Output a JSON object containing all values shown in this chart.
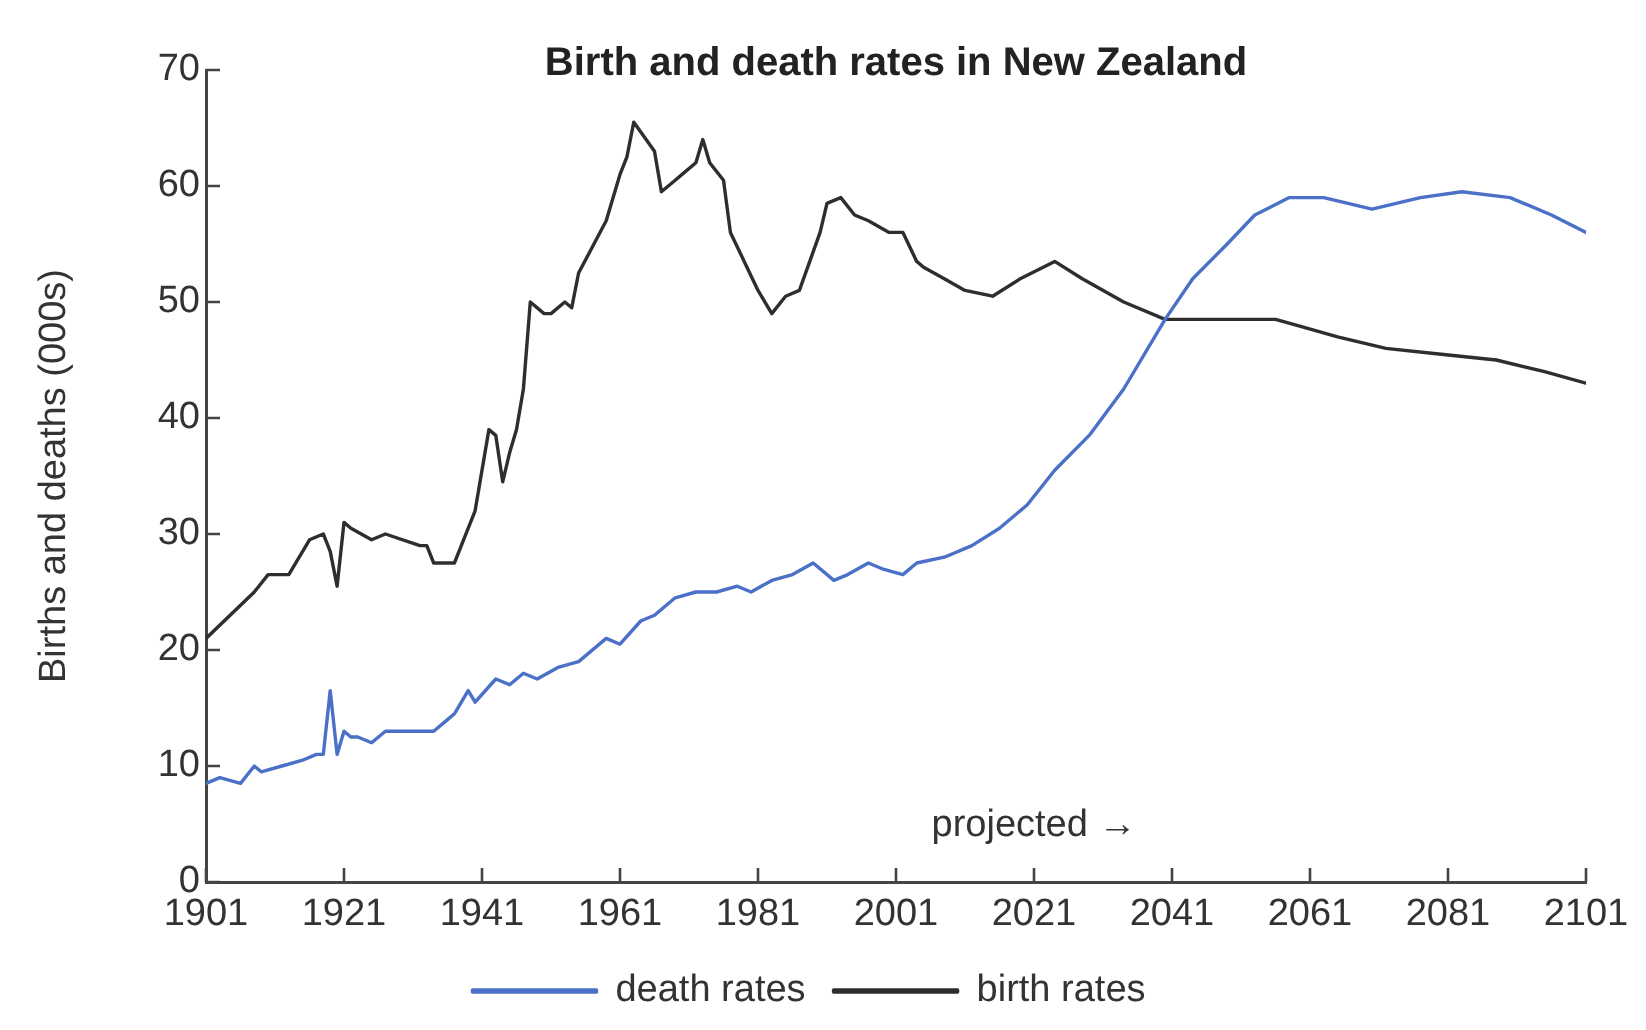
{
  "chart_data": {
    "type": "line",
    "title": "Birth and death rates in New Zealand",
    "ylabel": "Births and deaths (000s)",
    "xlim": [
      1901,
      2101
    ],
    "xticks": [
      1901,
      1921,
      1941,
      1961,
      1981,
      2001,
      2021,
      2041,
      2061,
      2081,
      2101
    ],
    "ylim": [
      0,
      70
    ],
    "yticks": [
      0,
      10,
      20,
      30,
      40,
      50,
      60,
      70
    ],
    "grid": false,
    "legend": "bottom",
    "marker": "none",
    "line_style": "solid",
    "annotations": [
      "projected →"
    ],
    "series": [
      {
        "name": "death rates",
        "color": "#4a70c8",
        "x": [
          1901,
          1903,
          1906,
          1908,
          1909,
          1912,
          1915,
          1917,
          1918,
          1919,
          1920,
          1921,
          1922,
          1923,
          1925,
          1927,
          1930,
          1934,
          1936,
          1937,
          1939,
          1940,
          1943,
          1945,
          1947,
          1949,
          1952,
          1955,
          1959,
          1961,
          1964,
          1966,
          1969,
          1972,
          1975,
          1978,
          1980,
          1983,
          1986,
          1989,
          1992,
          1994,
          1997,
          1999,
          2002,
          2004,
          2008,
          2012,
          2016,
          2020,
          2024,
          2029,
          2034,
          2040,
          2044,
          2049,
          2053,
          2058,
          2063,
          2070,
          2077,
          2083,
          2090,
          2096,
          2101
        ],
        "values": [
          8.5,
          9,
          8.5,
          10,
          9.5,
          10,
          10.5,
          11,
          11,
          16.5,
          11,
          13,
          12.5,
          12.5,
          12,
          13,
          13,
          13,
          14,
          14.5,
          16.5,
          15.5,
          17.5,
          17,
          18,
          17.5,
          18.5,
          19,
          21,
          20.5,
          22.5,
          23,
          24.5,
          25,
          25,
          25.5,
          25,
          26,
          26.5,
          27.5,
          26,
          26.5,
          27.5,
          27,
          26.5,
          27.5,
          28,
          29,
          30.5,
          32.5,
          35.5,
          38.5,
          42.5,
          48.5,
          52,
          55,
          57.5,
          59,
          59,
          58,
          59,
          59.5,
          59,
          57.5,
          56
        ]
      },
      {
        "name": "birth rates",
        "color": "#2e2e2e",
        "x": [
          1901,
          1908,
          1910,
          1913,
          1916,
          1918,
          1919,
          1920,
          1921,
          1922,
          1925,
          1927,
          1932,
          1933,
          1934,
          1937,
          1938,
          1940,
          1942,
          1943,
          1944,
          1945,
          1946,
          1947,
          1948,
          1950,
          1951,
          1953,
          1954,
          1955,
          1959,
          1961,
          1962,
          1963,
          1966,
          1967,
          1969,
          1970,
          1972,
          1973,
          1974,
          1976,
          1977,
          1979,
          1981,
          1983,
          1985,
          1987,
          1990,
          1991,
          1993,
          1995,
          1997,
          2000,
          2002,
          2004,
          2005,
          2008,
          2011,
          2015,
          2019,
          2024,
          2028,
          2034,
          2040,
          2043,
          2048,
          2056,
          2059,
          2065,
          2072,
          2080,
          2088,
          2095,
          2101
        ],
        "values": [
          21,
          25,
          26.5,
          26.5,
          29.5,
          30,
          28.5,
          25.5,
          31,
          30.5,
          29.5,
          30,
          29,
          29,
          27.5,
          27.5,
          29,
          32,
          39,
          38.5,
          34.5,
          37,
          39,
          42.5,
          50,
          49,
          49,
          50,
          49.5,
          52.5,
          57,
          61,
          62.5,
          65.5,
          63,
          59.5,
          60.5,
          61,
          62,
          64,
          62,
          60.5,
          56,
          53.5,
          51,
          49,
          50.5,
          51,
          56,
          58.5,
          59,
          57.5,
          57,
          56,
          56,
          53.5,
          53,
          52,
          51,
          50.5,
          52,
          53.5,
          52,
          50,
          48.5,
          48.5,
          48.5,
          48.5,
          48,
          47,
          46,
          45.5,
          45,
          44,
          43
        ]
      }
    ]
  }
}
